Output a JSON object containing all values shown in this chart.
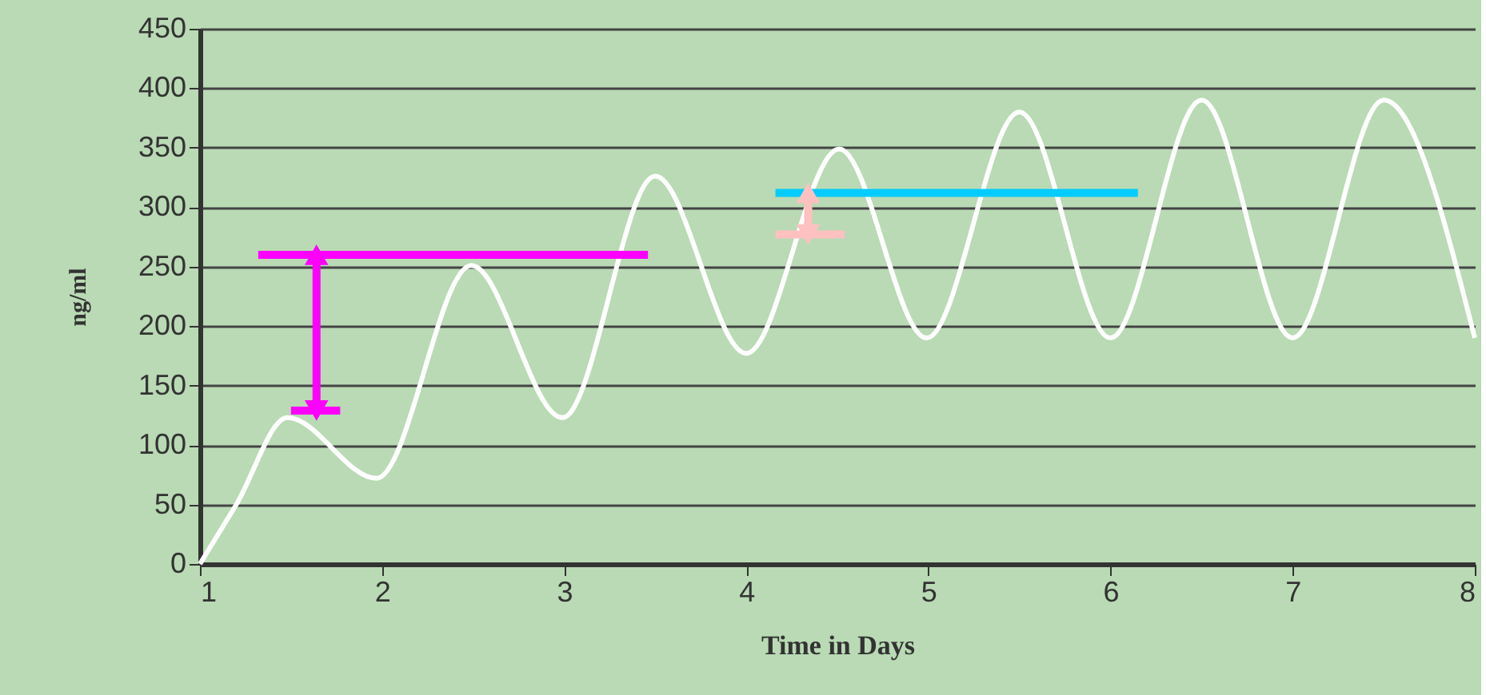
{
  "chart_data": {
    "type": "line",
    "xlabel": "Time in Days",
    "ylabel": "ng/ml",
    "xlim": [
      1,
      8
    ],
    "xticks": [
      1,
      2,
      3,
      4,
      5,
      6,
      7,
      8
    ],
    "ylim": [
      0,
      450
    ],
    "yticks": [
      0,
      50,
      100,
      150,
      200,
      250,
      300,
      350,
      400,
      450
    ],
    "grid": "y",
    "series": [
      {
        "color": "#ffffff",
        "x": [
          1,
          1.2,
          1.48,
          1.97,
          2.49,
          2.99,
          3.5,
          4.0,
          4.51,
          4.99,
          5.5,
          6.0,
          6.5,
          7.0,
          7.5,
          8.0
        ],
        "values": [
          0,
          50,
          123,
          72,
          251,
          123,
          326,
          177,
          349,
          190,
          380,
          190,
          390,
          190,
          390,
          190
        ]
      },
      {
        "color": "#ff00ff",
        "x": [
          1.32,
          3.46
        ],
        "values": [
          260,
          260
        ]
      },
      {
        "color": "#ff00ff",
        "x": [
          1.5,
          1.77
        ],
        "values": [
          129,
          129
        ]
      },
      {
        "color": "#ff00ff",
        "x": [
          1.64,
          1.64
        ],
        "values": [
          129,
          260
        ],
        "marker": "triangle"
      },
      {
        "color": "#00ccff",
        "x": [
          4.16,
          6.15
        ],
        "values": [
          312,
          312
        ]
      },
      {
        "color": "#ffc0c0",
        "x": [
          4.16,
          4.54
        ],
        "values": [
          277,
          277
        ]
      },
      {
        "color": "#ffc0c0",
        "x": [
          4.34,
          4.34
        ],
        "values": [
          312,
          277
        ],
        "marker": "triangle"
      }
    ]
  }
}
